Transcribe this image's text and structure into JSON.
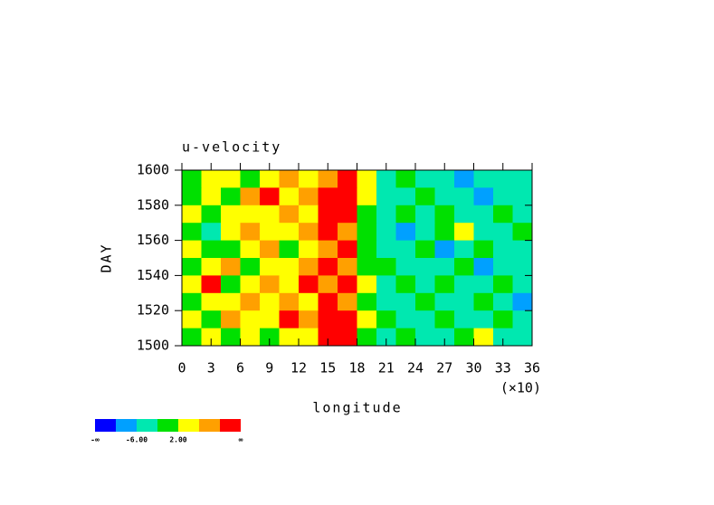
{
  "chart_data": {
    "type": "contour",
    "title": "u-velocity",
    "x_label": "longitude",
    "x_multiplier": "(×10)",
    "y_label": "DAY",
    "xlim": [
      0,
      36
    ],
    "xticks": [
      0,
      3,
      6,
      9,
      12,
      15,
      18,
      21,
      24,
      27,
      30,
      33,
      36
    ],
    "ylim": [
      1500,
      1600
    ],
    "yticks": [
      1500,
      1520,
      1540,
      1560,
      1580,
      1600
    ],
    "level_colors": [
      "#0000ff",
      "#00a0ff",
      "#00e8b0",
      "#00e000",
      "#ffff00",
      "#ffa000",
      "#ff0000"
    ],
    "colorbar_labels": [
      {
        "value": 0,
        "label": "-∞"
      },
      {
        "value": 2,
        "label": "-6.00"
      },
      {
        "value": 4,
        "label": "2.00"
      },
      {
        "value": 7,
        "label": "∞"
      }
    ],
    "levels": [
      [
        3,
        4,
        4,
        3,
        4,
        5,
        4,
        5,
        6,
        4,
        2,
        3,
        2,
        2,
        1,
        2,
        2,
        2
      ],
      [
        3,
        4,
        3,
        5,
        6,
        4,
        5,
        6,
        6,
        4,
        2,
        2,
        3,
        2,
        2,
        1,
        2,
        2
      ],
      [
        4,
        3,
        4,
        4,
        4,
        5,
        4,
        6,
        6,
        3,
        2,
        3,
        2,
        3,
        2,
        2,
        3,
        2
      ],
      [
        3,
        2,
        4,
        5,
        4,
        4,
        5,
        6,
        5,
        3,
        2,
        1,
        2,
        3,
        4,
        2,
        2,
        3
      ],
      [
        4,
        3,
        3,
        4,
        5,
        3,
        4,
        5,
        6,
        3,
        2,
        2,
        3,
        1,
        2,
        3,
        2,
        2
      ],
      [
        3,
        4,
        5,
        3,
        4,
        4,
        5,
        6,
        5,
        3,
        3,
        2,
        2,
        2,
        3,
        1,
        2,
        2
      ],
      [
        4,
        6,
        3,
        4,
        5,
        4,
        6,
        5,
        6,
        4,
        2,
        3,
        2,
        3,
        2,
        2,
        3,
        2
      ],
      [
        3,
        4,
        4,
        5,
        4,
        5,
        4,
        6,
        5,
        3,
        2,
        2,
        3,
        2,
        2,
        3,
        2,
        1
      ],
      [
        4,
        3,
        5,
        4,
        4,
        6,
        5,
        6,
        6,
        4,
        3,
        2,
        2,
        3,
        2,
        2,
        3,
        2
      ],
      [
        3,
        4,
        3,
        4,
        3,
        4,
        4,
        6,
        6,
        3,
        2,
        3,
        2,
        2,
        3,
        4,
        2,
        2
      ]
    ]
  }
}
